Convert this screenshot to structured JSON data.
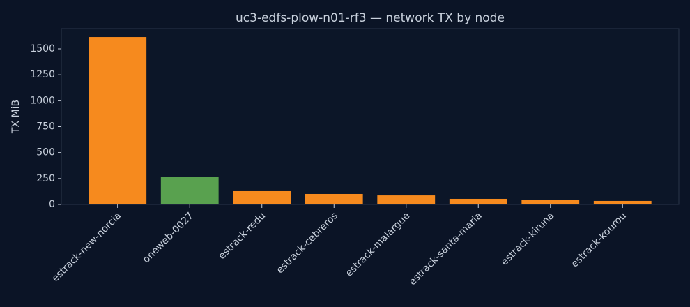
{
  "chart_data": {
    "type": "bar",
    "title": "uc3-edfs-plow-n01-rf3 — network TX by node",
    "y_label": "TX MiB",
    "categories": [
      "estrack-new-norcia",
      "oneweb-0027",
      "estrack-redu",
      "estrack-cebreros",
      "estrack-malargue",
      "estrack-santa-maria",
      "estrack-kiruna",
      "estrack-kourou"
    ],
    "values": [
      1614,
      269,
      128,
      101,
      87,
      54,
      47,
      34
    ],
    "colors": [
      "#f68a1e",
      "#59a14f",
      "#f68a1e",
      "#f68a1e",
      "#f68a1e",
      "#f68a1e",
      "#f68a1e",
      "#f68a1e"
    ],
    "ylim": [
      0,
      1695
    ],
    "yticks": [
      0,
      250,
      500,
      750,
      1000,
      1250,
      1500
    ]
  }
}
